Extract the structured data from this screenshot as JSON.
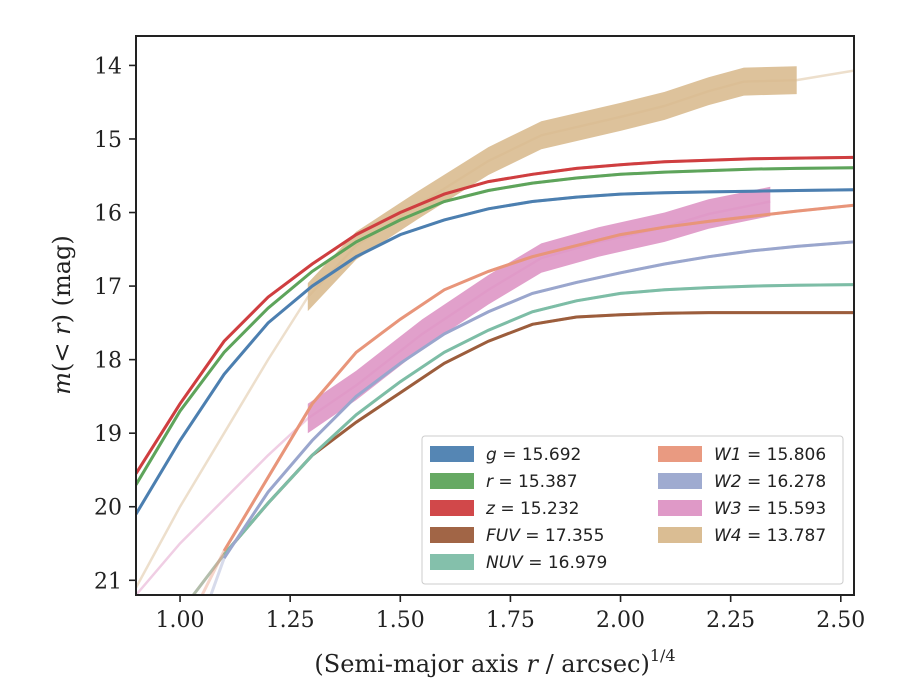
{
  "chart_data": {
    "type": "line",
    "title": "",
    "xlabel": "(Semi-major axis r / arcsec)^1/4",
    "xlabel_parts": {
      "prefix": "(Semi-major axis ",
      "var": "r",
      "middle": " / arcsec)",
      "exponent": "1/4"
    },
    "ylabel": "m(<r) (mag)",
    "ylabel_parts": {
      "var": "m",
      "inner": "(< ",
      "var2": "r",
      "close": ")",
      "unit": " (mag)"
    },
    "xlim": [
      0.9,
      2.53
    ],
    "ylim": [
      21.2,
      13.6
    ],
    "y_inverted": true,
    "x_ticks": [
      "1.00",
      "1.25",
      "1.50",
      "1.75",
      "2.00",
      "2.25",
      "2.50"
    ],
    "y_ticks": [
      "14",
      "15",
      "16",
      "17",
      "18",
      "19",
      "20",
      "21"
    ],
    "grid": false,
    "legend_position": "lower-right",
    "series": [
      {
        "name": "g",
        "value": "15.692",
        "color": "#4c7fb0",
        "kind": "line",
        "x": [
          0.9,
          1.0,
          1.1,
          1.2,
          1.3,
          1.4,
          1.5,
          1.6,
          1.7,
          1.8,
          1.9,
          2.0,
          2.1,
          2.2,
          2.3,
          2.4,
          2.53
        ],
        "y": [
          20.1,
          19.1,
          18.2,
          17.5,
          17.0,
          16.6,
          16.3,
          16.1,
          15.95,
          15.85,
          15.79,
          15.75,
          15.73,
          15.72,
          15.71,
          15.7,
          15.69
        ]
      },
      {
        "name": "r",
        "value": "15.387",
        "color": "#5ea45b",
        "kind": "line",
        "x": [
          0.9,
          1.0,
          1.1,
          1.2,
          1.3,
          1.4,
          1.5,
          1.6,
          1.7,
          1.8,
          1.9,
          2.0,
          2.1,
          2.2,
          2.3,
          2.4,
          2.53
        ],
        "y": [
          19.7,
          18.7,
          17.9,
          17.3,
          16.8,
          16.4,
          16.1,
          15.85,
          15.7,
          15.6,
          15.53,
          15.48,
          15.45,
          15.43,
          15.41,
          15.4,
          15.39
        ]
      },
      {
        "name": "z",
        "value": "15.232",
        "color": "#cf3e40",
        "kind": "line",
        "x": [
          0.9,
          1.0,
          1.1,
          1.2,
          1.3,
          1.4,
          1.5,
          1.6,
          1.7,
          1.8,
          1.9,
          2.0,
          2.1,
          2.2,
          2.3,
          2.4,
          2.53
        ],
        "y": [
          19.55,
          18.6,
          17.75,
          17.15,
          16.7,
          16.3,
          16.0,
          15.75,
          15.58,
          15.48,
          15.4,
          15.35,
          15.31,
          15.29,
          15.27,
          15.26,
          15.25
        ]
      },
      {
        "name": "FUV",
        "value": "17.355",
        "color": "#9c5d3c",
        "kind": "line",
        "x": [
          1.03,
          1.1,
          1.2,
          1.3,
          1.4,
          1.5,
          1.6,
          1.7,
          1.8,
          1.9,
          2.0,
          2.1,
          2.2,
          2.3,
          2.4,
          2.53
        ],
        "y": [
          21.2,
          20.65,
          19.95,
          19.3,
          18.85,
          18.45,
          18.05,
          17.75,
          17.52,
          17.42,
          17.39,
          17.37,
          17.36,
          17.36,
          17.36,
          17.36
        ]
      },
      {
        "name": "NUV",
        "value": "16.979",
        "color": "#7dbda6",
        "kind": "line",
        "x": [
          1.03,
          1.1,
          1.2,
          1.3,
          1.4,
          1.5,
          1.6,
          1.7,
          1.8,
          1.9,
          2.0,
          2.1,
          2.2,
          2.3,
          2.4,
          2.53
        ],
        "y": [
          21.2,
          20.65,
          19.95,
          19.3,
          18.75,
          18.3,
          17.9,
          17.6,
          17.35,
          17.2,
          17.1,
          17.05,
          17.02,
          17.0,
          16.99,
          16.98
        ]
      },
      {
        "name": "W1",
        "value": "15.806",
        "color": "#e8957a",
        "kind": "line",
        "x": [
          1.05,
          1.1,
          1.2,
          1.3,
          1.4,
          1.5,
          1.6,
          1.7,
          1.8,
          1.9,
          2.0,
          2.1,
          2.2,
          2.3,
          2.4,
          2.53
        ],
        "y": [
          21.2,
          20.6,
          19.6,
          18.6,
          17.9,
          17.45,
          17.05,
          16.8,
          16.6,
          16.45,
          16.3,
          16.2,
          16.12,
          16.05,
          15.98,
          15.9
        ]
      },
      {
        "name": "W2",
        "value": "16.278",
        "color": "#9aa6cd",
        "kind": "line",
        "x": [
          1.07,
          1.1,
          1.2,
          1.3,
          1.4,
          1.5,
          1.6,
          1.7,
          1.8,
          1.9,
          2.0,
          2.1,
          2.2,
          2.3,
          2.4,
          2.53
        ],
        "y": [
          21.2,
          20.7,
          19.8,
          19.1,
          18.5,
          18.05,
          17.65,
          17.35,
          17.1,
          16.95,
          16.82,
          16.7,
          16.6,
          16.52,
          16.46,
          16.4
        ]
      },
      {
        "name": "W3",
        "value": "15.593",
        "color": "#dd93c4",
        "kind": "band",
        "x": [
          0.9,
          1.0,
          1.1,
          1.2,
          1.29,
          1.4,
          1.55,
          1.7,
          1.82,
          1.95,
          2.1,
          2.2,
          2.34
        ],
        "y": [
          21.2,
          20.5,
          19.9,
          19.3,
          18.8,
          18.35,
          17.65,
          17.05,
          16.62,
          16.4,
          16.2,
          16.02,
          15.85
        ],
        "band_start": 1.29,
        "band_width": 0.4
      },
      {
        "name": "W4",
        "value": "13.787",
        "color": "#d8b98d",
        "kind": "band",
        "x": [
          0.9,
          1.0,
          1.1,
          1.2,
          1.29,
          1.4,
          1.54,
          1.7,
          1.82,
          2.0,
          2.1,
          2.2,
          2.28,
          2.4,
          2.53
        ],
        "y": [
          21.1,
          20.0,
          19.0,
          18.0,
          17.15,
          16.45,
          15.9,
          15.3,
          14.95,
          14.7,
          14.55,
          14.35,
          14.22,
          14.2,
          14.07
        ],
        "band_start": 1.29,
        "band_end": 2.4,
        "band_width": 0.38
      }
    ]
  }
}
